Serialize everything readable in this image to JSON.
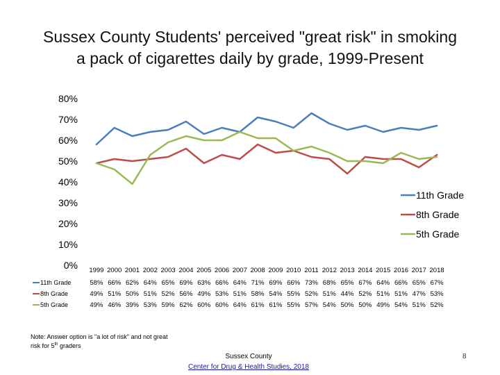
{
  "title_line1": "Sussex County Students' perceived \"great risk\" in smoking",
  "title_line2": "a pack of cigarettes daily by grade, 1999-Present",
  "note": {
    "text_before": "Note: Answer option is \"a lot of risk\" and not great risk for 5",
    "sup": "th",
    "text_after": " graders"
  },
  "source": {
    "org": "Sussex County",
    "link_text": "Center for Drug & Health Studies, 2018"
  },
  "page_number": "8",
  "chart_data": {
    "type": "line",
    "x": [
      "1999",
      "2000",
      "2001",
      "2002",
      "2003",
      "2004",
      "2005",
      "2006",
      "2007",
      "2008",
      "2009",
      "2010",
      "2011",
      "2012",
      "2013",
      "2014",
      "2015",
      "2016",
      "2017",
      "2018"
    ],
    "y_ticks": [
      "0%",
      "10%",
      "20%",
      "30%",
      "40%",
      "50%",
      "60%",
      "70%",
      "80%"
    ],
    "ylim": [
      0,
      80
    ],
    "legend_position": "right",
    "grid": false,
    "series": [
      {
        "name": "11th Grade",
        "color": "#4a7ebb",
        "values": [
          58,
          66,
          62,
          64,
          65,
          69,
          63,
          66,
          64,
          71,
          69,
          66,
          73,
          68,
          65,
          67,
          64,
          66,
          65,
          67
        ],
        "labels": [
          "58%",
          "66%",
          "62%",
          "64%",
          "65%",
          "69%",
          "63%",
          "66%",
          "64%",
          "71%",
          "69%",
          "66%",
          "73%",
          "68%",
          "65%",
          "67%",
          "64%",
          "66%",
          "65%",
          "67%"
        ]
      },
      {
        "name": "8th Grade",
        "color": "#be4b48",
        "values": [
          49,
          51,
          50,
          51,
          52,
          56,
          49,
          53,
          51,
          58,
          54,
          55,
          52,
          51,
          44,
          52,
          51,
          51,
          47,
          53
        ],
        "labels": [
          "49%",
          "51%",
          "50%",
          "51%",
          "52%",
          "56%",
          "49%",
          "53%",
          "51%",
          "58%",
          "54%",
          "55%",
          "52%",
          "51%",
          "44%",
          "52%",
          "51%",
          "51%",
          "47%",
          "53%"
        ]
      },
      {
        "name": "5th Grade",
        "color": "#98b954",
        "values": [
          49,
          46,
          39,
          53,
          59,
          62,
          60,
          60,
          64,
          61,
          61,
          55,
          57,
          54,
          50,
          50,
          49,
          54,
          51,
          52
        ],
        "labels": [
          "49%",
          "46%",
          "39%",
          "53%",
          "59%",
          "62%",
          "60%",
          "60%",
          "64%",
          "61%",
          "61%",
          "55%",
          "57%",
          "54%",
          "50%",
          "50%",
          "49%",
          "54%",
          "51%",
          "52%"
        ]
      }
    ]
  }
}
